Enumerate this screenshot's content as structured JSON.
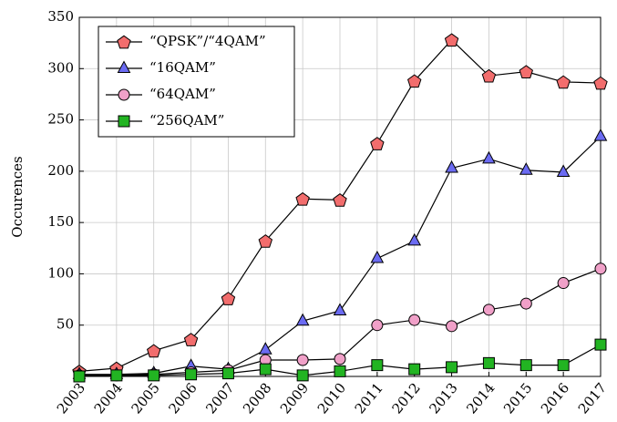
{
  "chart_data": {
    "type": "line",
    "y_label": "Occurences",
    "categories": [
      "2003",
      "2004",
      "2005",
      "2006",
      "2007",
      "2008",
      "2009",
      "2010",
      "2011",
      "2012",
      "2013",
      "2014",
      "2015",
      "2016",
      "2017"
    ],
    "ylim": [
      0,
      350
    ],
    "yticks": [
      50,
      100,
      150,
      200,
      250,
      300,
      350
    ],
    "grid": true,
    "legend": "upper left",
    "series": [
      {
        "name": "“QPSK”/“4QAM”",
        "color": "#f26d6d",
        "marker": "pentagon",
        "values": [
          5,
          8,
          25,
          36,
          76,
          132,
          173,
          172,
          227,
          288,
          328,
          293,
          297,
          287,
          286
        ]
      },
      {
        "name": "“16QAM”",
        "color": "#6b6bf2",
        "marker": "triangle",
        "values": [
          2,
          2,
          3,
          10,
          7,
          26,
          54,
          64,
          115,
          132,
          203,
          212,
          201,
          199,
          234
        ]
      },
      {
        "name": "“64QAM”",
        "color": "#f0a0c8",
        "marker": "circle",
        "values": [
          1,
          1,
          2,
          4,
          6,
          16,
          16,
          17,
          50,
          55,
          49,
          65,
          71,
          91,
          105
        ]
      },
      {
        "name": "“256QAM”",
        "color": "#22b422",
        "marker": "square",
        "values": [
          0,
          1,
          1,
          2,
          3,
          7,
          1,
          5,
          11,
          7,
          9,
          13,
          11,
          11,
          31
        ]
      }
    ]
  }
}
